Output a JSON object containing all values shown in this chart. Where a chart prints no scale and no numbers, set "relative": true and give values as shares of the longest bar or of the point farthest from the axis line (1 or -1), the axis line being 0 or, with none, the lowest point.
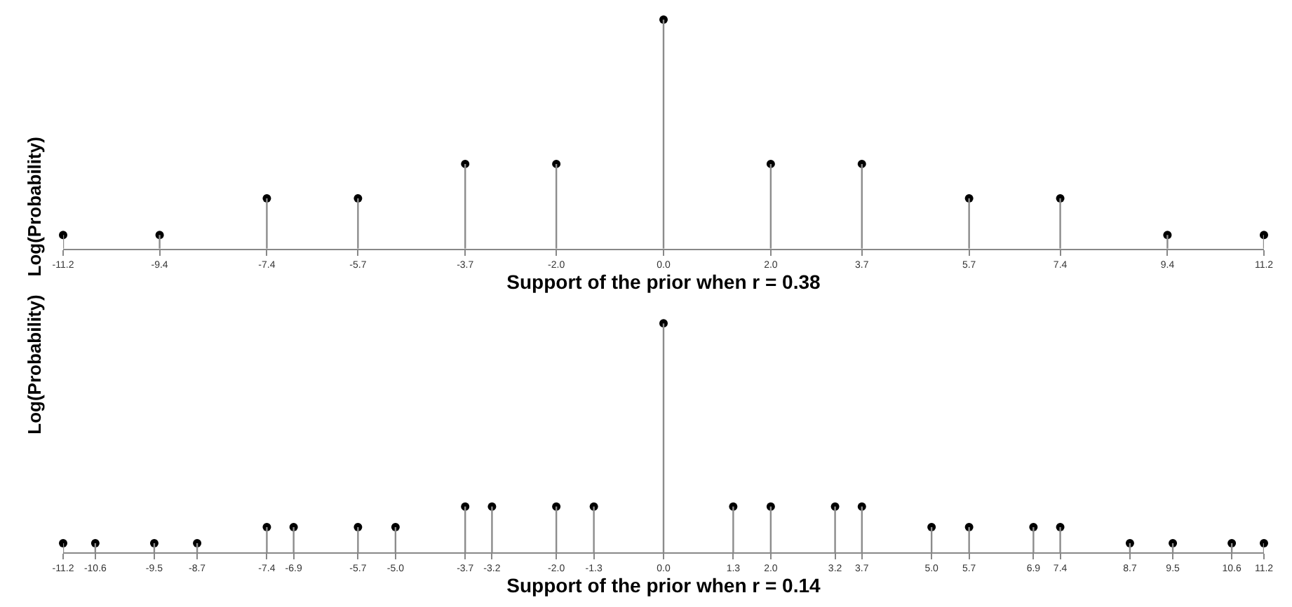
{
  "chart_data": [
    {
      "type": "lollipop",
      "relative": true,
      "xlabel": "Support of the prior when r = 0.38",
      "ylabel": "Log(Probability)",
      "marker": "circle",
      "xlim": [
        -11.2,
        11.2
      ],
      "xticks": [
        {
          "value": -11.2,
          "label": "-11.2"
        },
        {
          "value": -9.4,
          "label": "-9.4"
        },
        {
          "value": -7.4,
          "label": "-7.4"
        },
        {
          "value": -5.7,
          "label": "-5.7"
        },
        {
          "value": -3.7,
          "label": "-3.7"
        },
        {
          "value": -2.0,
          "label": "-2.0"
        },
        {
          "value": 0.0,
          "label": "0.0"
        },
        {
          "value": 2.0,
          "label": "2.0"
        },
        {
          "value": 3.7,
          "label": "3.7"
        },
        {
          "value": 5.7,
          "label": "5.7"
        },
        {
          "value": 7.4,
          "label": "7.4"
        },
        {
          "value": 9.4,
          "label": "9.4"
        },
        {
          "value": 11.2,
          "label": "11.2"
        }
      ],
      "x": [
        -11.2,
        -9.4,
        -7.4,
        -5.7,
        -3.7,
        -2.0,
        0.0,
        2.0,
        3.7,
        5.7,
        7.4,
        9.4,
        11.2
      ],
      "series": [
        {
          "color": "#000000",
          "values": [
            0.06,
            0.06,
            0.22,
            0.22,
            0.37,
            0.37,
            1,
            0.37,
            0.37,
            0.22,
            0.22,
            0.06,
            0.06
          ]
        }
      ]
    },
    {
      "type": "lollipop",
      "relative": true,
      "xlabel": "Support of the prior when r = 0.14",
      "ylabel": "Log(Probability)",
      "marker": "circle",
      "xlim": [
        -11.2,
        11.2
      ],
      "xticks": [
        {
          "value": -11.2,
          "label": "-11.2"
        },
        {
          "value": -10.6,
          "label": "-10.6"
        },
        {
          "value": -9.5,
          "label": "-9.5"
        },
        {
          "value": -8.7,
          "label": "-8.7"
        },
        {
          "value": -7.4,
          "label": "-7.4"
        },
        {
          "value": -6.9,
          "label": "-6.9"
        },
        {
          "value": -5.7,
          "label": "-5.7"
        },
        {
          "value": -5.0,
          "label": "-5.0"
        },
        {
          "value": -3.7,
          "label": "-3.7"
        },
        {
          "value": -3.2,
          "label": "-3.2"
        },
        {
          "value": -2.0,
          "label": "-2.0"
        },
        {
          "value": -1.3,
          "label": "-1.3"
        },
        {
          "value": 0.0,
          "label": "0.0"
        },
        {
          "value": 1.3,
          "label": "1.3"
        },
        {
          "value": 2.0,
          "label": "2.0"
        },
        {
          "value": 3.2,
          "label": "3.2"
        },
        {
          "value": 3.7,
          "label": "3.7"
        },
        {
          "value": 5.0,
          "label": "5.0"
        },
        {
          "value": 5.7,
          "label": "5.7"
        },
        {
          "value": 6.9,
          "label": "6.9"
        },
        {
          "value": 7.4,
          "label": "7.4"
        },
        {
          "value": 8.7,
          "label": "8.7"
        },
        {
          "value": 9.5,
          "label": "9.5"
        },
        {
          "value": 10.6,
          "label": "10.6"
        },
        {
          "value": 11.2,
          "label": "11.2"
        }
      ],
      "x": [
        -11.2,
        -10.6,
        -9.5,
        -8.7,
        -7.4,
        -6.9,
        -5.7,
        -5.0,
        -3.7,
        -3.2,
        -2.0,
        -1.3,
        0.0,
        1.3,
        2.0,
        3.2,
        3.7,
        5.0,
        5.7,
        6.9,
        7.4,
        8.7,
        9.5,
        10.6,
        11.2
      ],
      "series": [
        {
          "color": "#000000",
          "values": [
            0.04,
            0.04,
            0.04,
            0.04,
            0.11,
            0.11,
            0.11,
            0.11,
            0.2,
            0.2,
            0.2,
            0.2,
            1,
            0.2,
            0.2,
            0.2,
            0.2,
            0.11,
            0.11,
            0.11,
            0.11,
            0.04,
            0.04,
            0.04,
            0.04
          ]
        }
      ]
    }
  ]
}
